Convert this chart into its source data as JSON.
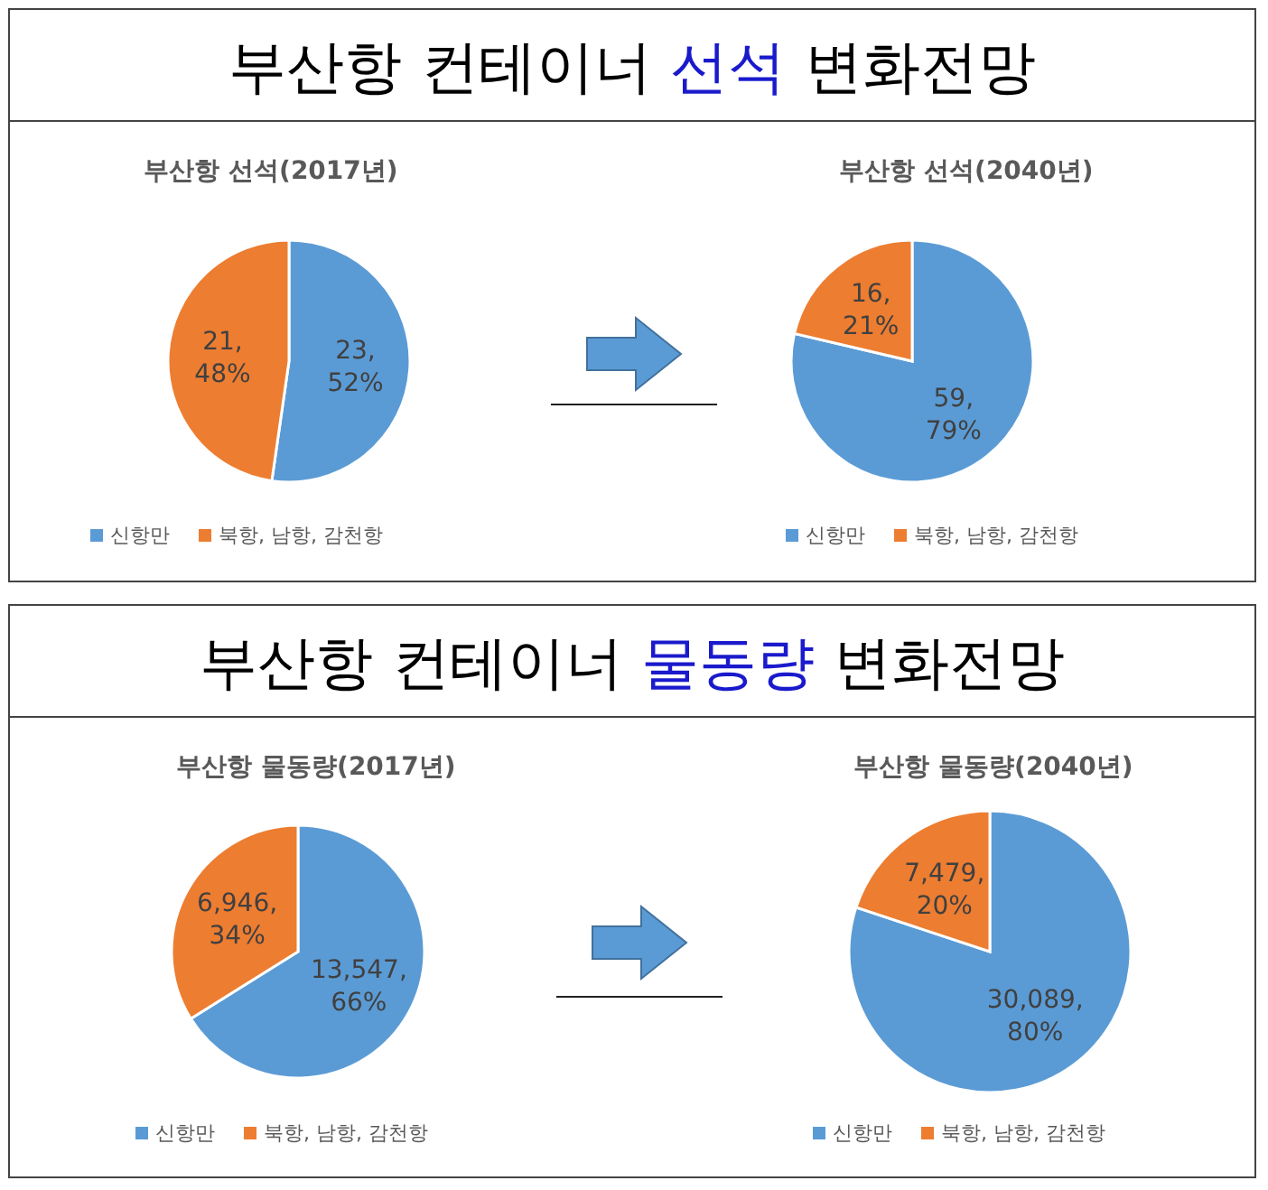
{
  "chart_data": [
    {
      "type": "other",
      "title": "부산항 컨테이너 선석 변화전망"
    },
    {
      "type": "pie",
      "title": "부산항 선석(2017년)",
      "categories": [
        "신항만",
        "북항, 남항, 감천항"
      ],
      "values": [
        23,
        21
      ],
      "colors": [
        "#5b9bd5",
        "#ed7d31"
      ],
      "value_labels": [
        "23, 52%",
        "21, 48%"
      ],
      "legend": "bottom"
    },
    {
      "type": "pie",
      "title": "부산항 선석(2040년)",
      "categories": [
        "신항만",
        "북항, 남항, 감천항"
      ],
      "values": [
        59,
        16
      ],
      "colors": [
        "#5b9bd5",
        "#ed7d31"
      ],
      "value_labels": [
        "59, 79%",
        "16, 21%"
      ],
      "legend": "bottom"
    },
    {
      "type": "other",
      "title": "부산항 컨테이너 물동량 변화전망"
    },
    {
      "type": "pie",
      "title": "부산항 물동량(2017년)",
      "categories": [
        "신항만",
        "북항, 남항, 감천항"
      ],
      "values": [
        13547,
        6946
      ],
      "colors": [
        "#5b9bd5",
        "#ed7d31"
      ],
      "value_labels": [
        "13,547, 66%",
        "6,946, 34%"
      ],
      "legend": "bottom"
    },
    {
      "type": "pie",
      "title": "부산항 물동량(2040년)",
      "categories": [
        "신항만",
        "북항, 남항, 감천항"
      ],
      "values": [
        30089,
        7479
      ],
      "colors": [
        "#5b9bd5",
        "#ed7d31"
      ],
      "value_labels": [
        "30,089, 80%",
        "7,479, 20%"
      ],
      "legend": "bottom"
    }
  ]
}
